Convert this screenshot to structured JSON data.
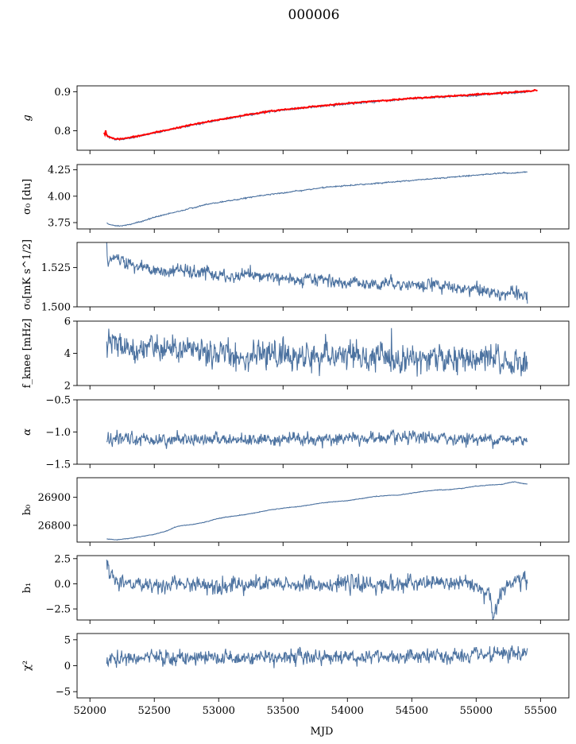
{
  "figure": {
    "title": "000006",
    "xlabel": "MJD"
  },
  "chart_data": {
    "type": "line",
    "title": "000006",
    "xlabel": "MJD",
    "xlim": [
      51900,
      55720
    ],
    "xticks": [
      52000,
      52500,
      53000,
      53500,
      54000,
      54500,
      55000,
      55500
    ],
    "panels": [
      {
        "name": "g",
        "ylabel": "g",
        "ylim": [
          0.75,
          0.915
        ],
        "yticks": [
          0.8,
          0.9
        ],
        "yticklabels": [
          "0.8",
          "0.9"
        ],
        "colors": {
          "primary": "#4c72a0",
          "overlay": "#ff0000"
        },
        "series": [
          {
            "x": [
              52120,
              52150,
              52200,
              52250,
              52300,
              52400,
              52500,
              52600,
              52700,
              52800,
              52900,
              53000,
              53100,
              53200,
              53300,
              53400,
              53500,
              53600,
              53700,
              53800,
              53900,
              54000,
              54100,
              54200,
              54300,
              54400,
              54500,
              54600,
              54700,
              54800,
              54900,
              55000,
              55100,
              55200,
              55300,
              55400
            ],
            "y": [
              0.795,
              0.783,
              0.778,
              0.778,
              0.781,
              0.787,
              0.794,
              0.801,
              0.808,
              0.815,
              0.821,
              0.827,
              0.833,
              0.839,
              0.844,
              0.849,
              0.853,
              0.856,
              0.859,
              0.863,
              0.866,
              0.869,
              0.872,
              0.875,
              0.877,
              0.879,
              0.882,
              0.884,
              0.886,
              0.888,
              0.889,
              0.891,
              0.893,
              0.895,
              0.897,
              0.899
            ]
          },
          {
            "x": [
              52110,
              52113,
              52116,
              52120,
              52125,
              52150,
              52200,
              52250,
              52300,
              52400,
              52500,
              52600,
              52700,
              52800,
              52900,
              53000,
              53100,
              53200,
              53300,
              53400,
              53500,
              53600,
              53700,
              53800,
              53900,
              54000,
              54100,
              54200,
              54300,
              54400,
              54500,
              54600,
              54700,
              54800,
              54900,
              55000,
              55100,
              55200,
              55300,
              55400,
              55450,
              55480
            ],
            "y": [
              0.795,
              0.822,
              0.79,
              0.808,
              0.79,
              0.784,
              0.779,
              0.779,
              0.782,
              0.788,
              0.795,
              0.802,
              0.809,
              0.816,
              0.822,
              0.828,
              0.834,
              0.84,
              0.845,
              0.85,
              0.854,
              0.857,
              0.861,
              0.864,
              0.867,
              0.87,
              0.873,
              0.876,
              0.878,
              0.88,
              0.883,
              0.885,
              0.887,
              0.889,
              0.891,
              0.893,
              0.895,
              0.897,
              0.899,
              0.901,
              0.904,
              0.903
            ]
          }
        ]
      },
      {
        "name": "sigma0-du",
        "ylabel": "σ₀ [du]",
        "ylim": [
          3.69,
          4.3
        ],
        "yticks": [
          3.75,
          4.0,
          4.25
        ],
        "yticklabels": [
          "3.75",
          "4.00",
          "4.25"
        ],
        "colors": {
          "primary": "#4c72a0"
        },
        "series": [
          {
            "x": [
              52130,
              52150,
              52200,
              52250,
              52300,
              52400,
              52500,
              52600,
              52700,
              52800,
              52900,
              53000,
              53100,
              53200,
              53300,
              53400,
              53500,
              53600,
              53700,
              53800,
              53900,
              54000,
              54100,
              54200,
              54300,
              54400,
              54500,
              54600,
              54700,
              54800,
              54900,
              55000,
              55100,
              55200,
              55300,
              55400
            ],
            "y": [
              3.75,
              3.73,
              3.72,
              3.72,
              3.73,
              3.76,
              3.8,
              3.83,
              3.86,
              3.89,
              3.92,
              3.94,
              3.96,
              3.98,
              4.0,
              4.02,
              4.03,
              4.05,
              4.06,
              4.08,
              4.09,
              4.1,
              4.11,
              4.12,
              4.13,
              4.14,
              4.15,
              4.16,
              4.17,
              4.18,
              4.19,
              4.2,
              4.21,
              4.22,
              4.22,
              4.23
            ]
          }
        ]
      },
      {
        "name": "sigma0-mks",
        "ylabel": "σ₀[mK s^1/2]",
        "ylim": [
          1.5,
          1.541
        ],
        "yticks": [
          1.5,
          1.525
        ],
        "yticklabels": [
          "1.500",
          "1.525"
        ],
        "colors": {
          "primary": "#4c72a0"
        },
        "series": [
          {
            "x": [
              52130,
              52140,
              52160,
              52200,
              52250,
              52300,
              52400,
              52500,
              52600,
              52700,
              52800,
              52900,
              53000,
              53100,
              53200,
              53300,
              53400,
              53500,
              53600,
              53700,
              53800,
              53900,
              54000,
              54100,
              54200,
              54300,
              54400,
              54500,
              54600,
              54700,
              54800,
              54900,
              55000,
              55100,
              55200,
              55300,
              55400
            ],
            "y": [
              1.539,
              1.526,
              1.53,
              1.532,
              1.53,
              1.527,
              1.526,
              1.523,
              1.522,
              1.524,
              1.521,
              1.522,
              1.52,
              1.518,
              1.521,
              1.519,
              1.52,
              1.518,
              1.516,
              1.517,
              1.518,
              1.516,
              1.515,
              1.516,
              1.514,
              1.516,
              1.515,
              1.514,
              1.513,
              1.515,
              1.512,
              1.511,
              1.512,
              1.509,
              1.509,
              1.508,
              1.506
            ]
          }
        ]
      },
      {
        "name": "fknee",
        "ylabel": "f_knee [mHz]",
        "ylim": [
          2,
          6
        ],
        "yticks": [
          2,
          4,
          6
        ],
        "yticklabels": [
          "2",
          "4",
          "6"
        ],
        "colors": {
          "primary": "#4c72a0"
        },
        "series": [
          {
            "x": [
              52130,
              52150,
              52200,
              52300,
              52400,
              52500,
              52600,
              52700,
              52800,
              52900,
              53000,
              53200,
              53400,
              53600,
              53800,
              54000,
              54200,
              54400,
              54600,
              54800,
              55000,
              55200,
              55400
            ],
            "y": [
              4.4,
              4.8,
              4.6,
              4.5,
              4.4,
              4.3,
              4.2,
              4.1,
              4.1,
              4.0,
              4.0,
              3.9,
              3.9,
              3.8,
              3.8,
              3.8,
              3.7,
              3.7,
              3.7,
              3.6,
              3.6,
              3.5,
              3.3
            ]
          }
        ]
      },
      {
        "name": "alpha",
        "ylabel": "α",
        "ylim": [
          -1.5,
          -0.5
        ],
        "yticks": [
          -1.5,
          -1.0,
          -0.5
        ],
        "yticklabels": [
          "−1.5",
          "−1.0",
          "−0.5"
        ],
        "colors": {
          "primary": "#4c72a0"
        },
        "series": [
          {
            "x": [
              52130,
              52400,
              52700,
              53000,
              53300,
              53600,
              53900,
              54200,
              54500,
              54800,
              55100,
              55400
            ],
            "y": [
              -1.12,
              -1.11,
              -1.11,
              -1.11,
              -1.11,
              -1.11,
              -1.11,
              -1.1,
              -1.1,
              -1.1,
              -1.11,
              -1.12
            ]
          }
        ]
      },
      {
        "name": "b0",
        "ylabel": "b₀",
        "ylim": [
          26740,
          26970
        ],
        "yticks": [
          26800,
          26900
        ],
        "yticklabels": [
          "26800",
          "26900"
        ],
        "colors": {
          "primary": "#4c72a0"
        },
        "series": [
          {
            "x": [
              52130,
              52200,
              52300,
              52400,
              52500,
              52600,
              52650,
              52700,
              52800,
              52900,
              53000,
              53100,
              53200,
              53300,
              53400,
              53500,
              53600,
              53700,
              53800,
              53900,
              54000,
              54100,
              54200,
              54300,
              54400,
              54500,
              54600,
              54700,
              54800,
              54900,
              55000,
              55100,
              55200,
              55250,
              55300,
              55350,
              55400
            ],
            "y": [
              26752,
              26748,
              26753,
              26760,
              26768,
              26780,
              26792,
              26798,
              26803,
              26812,
              26825,
              26832,
              26838,
              26846,
              26855,
              26861,
              26866,
              26872,
              26880,
              26884,
              26888,
              26895,
              26902,
              26906,
              26908,
              26915,
              26922,
              26926,
              26928,
              26933,
              26940,
              26944,
              26946,
              26952,
              26955,
              26950,
              26948
            ]
          }
        ]
      },
      {
        "name": "b1",
        "ylabel": "b₁",
        "ylim": [
          -3.6,
          2.8
        ],
        "yticks": [
          -2.5,
          0.0,
          2.5
        ],
        "yticklabels": [
          "−2.5",
          "0.0",
          "2.5"
        ],
        "colors": {
          "primary": "#4c72a0"
        },
        "series": [
          {
            "x": [
              52130,
              52150,
              52200,
              52300,
              52500,
              52700,
              53000,
              53300,
              53600,
              53900,
              54200,
              54500,
              54800,
              55000,
              55100,
              55130,
              55200,
              55300,
              55400
            ],
            "y": [
              2.3,
              0.8,
              0.2,
              0.0,
              -0.1,
              -0.1,
              -0.1,
              -0.1,
              -0.1,
              0.0,
              -0.1,
              0.0,
              0.1,
              -0.2,
              -0.8,
              -3.3,
              -0.5,
              0.2,
              0.3
            ]
          }
        ]
      },
      {
        "name": "chi2",
        "ylabel": "χ²",
        "ylim": [
          -6.2,
          6.2
        ],
        "yticks": [
          -5,
          0,
          5
        ],
        "yticklabels": [
          "−5",
          "0",
          "5"
        ],
        "colors": {
          "primary": "#4c72a0"
        },
        "series": [
          {
            "x": [
              52130,
              52400,
              52700,
              53000,
              53300,
              53600,
              53900,
              54200,
              54500,
              54800,
              55100,
              55400
            ],
            "y": [
              1.2,
              1.4,
              1.5,
              1.5,
              1.7,
              1.8,
              1.8,
              1.7,
              1.8,
              1.7,
              1.9,
              2.3
            ]
          }
        ]
      }
    ]
  }
}
